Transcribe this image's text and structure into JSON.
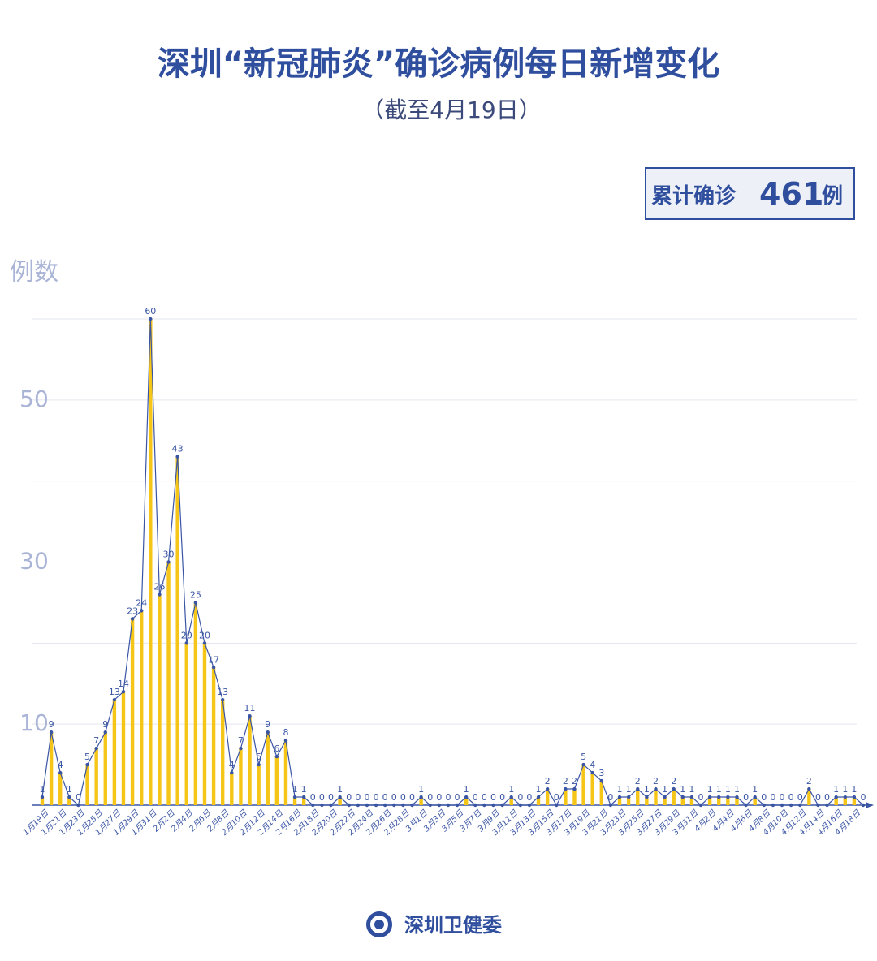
{
  "chart_data": {
    "type": "bar-line",
    "title": "深圳“新冠肺炎”确诊病例每日新增变化",
    "subtitle": "（截至4月19日）",
    "total_label": "累计确诊",
    "total": 461,
    "total_unit": "例",
    "y_label": "例数",
    "footer": "深圳卫健委",
    "categories": [
      "1月19日",
      null,
      "1月21日",
      null,
      "1月23日",
      null,
      "1月25日",
      null,
      "1月27日",
      null,
      "1月29日",
      null,
      "1月31日",
      null,
      "2月2日",
      null,
      "2月4日",
      null,
      "2月6日",
      null,
      "2月8日",
      null,
      "2月10日",
      null,
      "2月12日",
      null,
      "2月14日",
      null,
      "2月16日",
      null,
      "2月18日",
      null,
      "2月20日",
      null,
      "2月22日",
      null,
      "2月24日",
      null,
      "2月26日",
      null,
      "2月28日",
      null,
      "3月1日",
      null,
      "3月3日",
      null,
      "3月5日",
      null,
      "3月7日",
      null,
      "3月9日",
      null,
      "3月11日",
      null,
      "3月13日",
      null,
      "3月15日",
      null,
      "3月17日",
      null,
      "3月19日",
      null,
      "3月21日",
      null,
      "3月23日",
      null,
      "3月25日",
      null,
      "3月27日",
      null,
      "3月29日",
      null,
      "3月31日",
      null,
      "4月2日",
      null,
      "4月4日",
      null,
      "4月6日",
      null,
      "4月8日",
      null,
      "4月10日",
      null,
      "4月12日",
      null,
      "4月14日",
      null,
      "4月16日",
      null,
      "4月18日",
      null
    ],
    "values": [
      1,
      9,
      4,
      1,
      0,
      5,
      7,
      9,
      13,
      14,
      23,
      24,
      60,
      26,
      30,
      43,
      20,
      25,
      20,
      17,
      13,
      4,
      7,
      11,
      5,
      9,
      6,
      8,
      1,
      1,
      0,
      0,
      0,
      1,
      0,
      0,
      0,
      0,
      0,
      0,
      0,
      0,
      1,
      0,
      0,
      0,
      0,
      1,
      0,
      0,
      0,
      0,
      1,
      0,
      0,
      1,
      2,
      0,
      2,
      2,
      5,
      4,
      3,
      0,
      1,
      1,
      2,
      1,
      2,
      1,
      2,
      1,
      1,
      0,
      1,
      1,
      1,
      1,
      0,
      1,
      0,
      0,
      0,
      0,
      0,
      2,
      0,
      0,
      1,
      1,
      1,
      0
    ],
    "bar_color": "#f5c518",
    "line_color": "#3a55a4",
    "ylim": [
      0,
      60
    ],
    "yticks": [
      10,
      30,
      50
    ],
    "grid_ticks": [
      10,
      20,
      30,
      40,
      50,
      60
    ],
    "grid": true
  }
}
